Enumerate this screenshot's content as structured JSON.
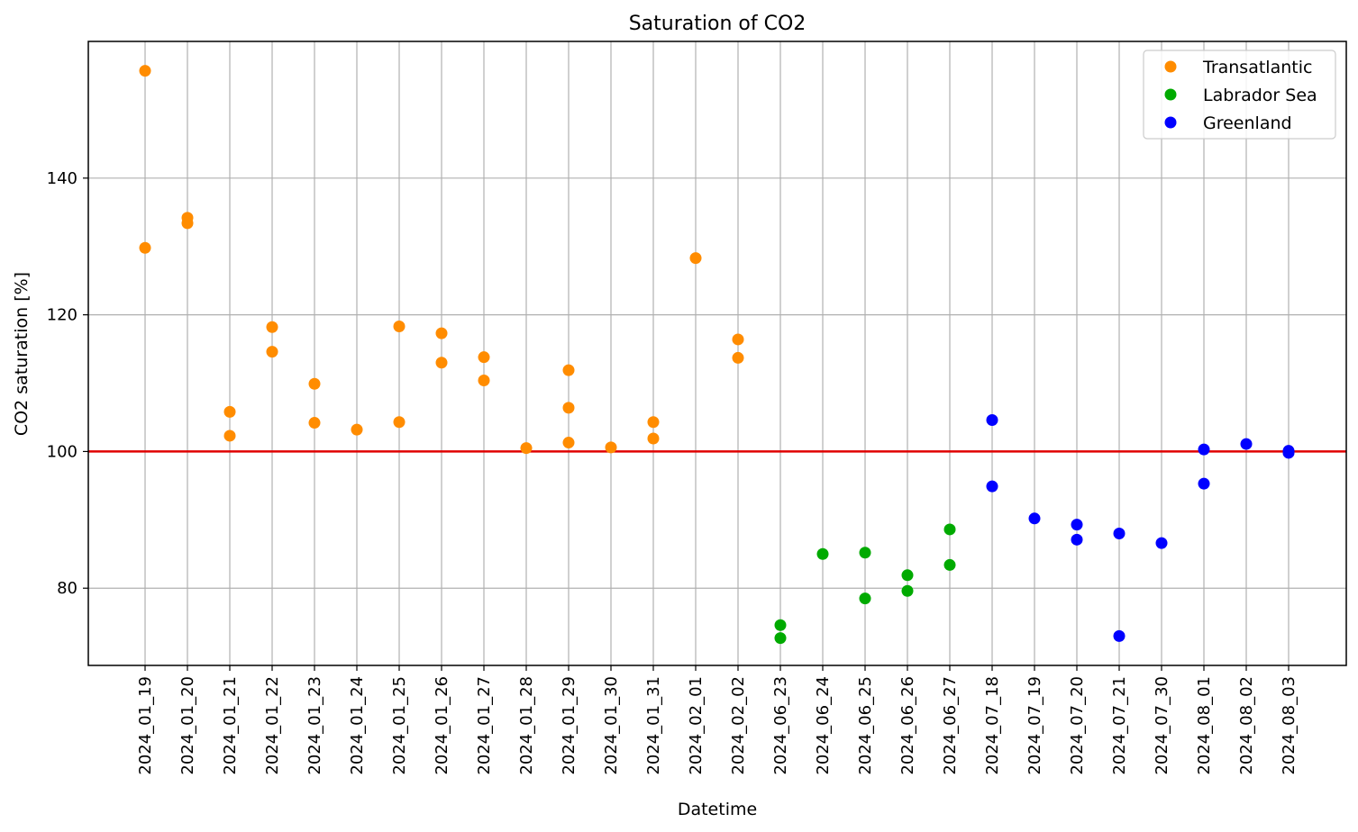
{
  "chart_data": {
    "type": "scatter",
    "title": "Saturation of CO2",
    "xlabel": "Datetime",
    "ylabel": "CO2 saturation [%]",
    "categories": [
      "2024_01_19",
      "2024_01_20",
      "2024_01_21",
      "2024_01_22",
      "2024_01_23",
      "2024_01_24",
      "2024_01_25",
      "2024_01_26",
      "2024_01_27",
      "2024_01_28",
      "2024_01_29",
      "2024_01_30",
      "2024_01_31",
      "2024_02_01",
      "2024_02_02",
      "2024_06_23",
      "2024_06_24",
      "2024_06_25",
      "2024_06_26",
      "2024_06_27",
      "2024_07_18",
      "2024_07_19",
      "2024_07_20",
      "2024_07_21",
      "2024_07_30",
      "2024_08_01",
      "2024_08_02",
      "2024_08_03"
    ],
    "ylim": [
      68.7,
      160
    ],
    "yticks": [
      80,
      100,
      120,
      140
    ],
    "grid": true,
    "legend_position": "top-right",
    "reference_line": {
      "y": 100,
      "color": "#e00000"
    },
    "series": [
      {
        "name": "Transatlantic",
        "color": "#ff8c00",
        "points": [
          [
            "2024_01_19",
            155.7
          ],
          [
            "2024_01_19",
            129.8
          ],
          [
            "2024_01_20",
            134.2
          ],
          [
            "2024_01_20",
            133.4
          ],
          [
            "2024_01_21",
            105.8
          ],
          [
            "2024_01_21",
            102.3
          ],
          [
            "2024_01_22",
            118.2
          ],
          [
            "2024_01_22",
            114.6
          ],
          [
            "2024_01_23",
            109.9
          ],
          [
            "2024_01_23",
            104.2
          ],
          [
            "2024_01_24",
            103.2
          ],
          [
            "2024_01_25",
            118.3
          ],
          [
            "2024_01_25",
            104.3
          ],
          [
            "2024_01_26",
            117.3
          ],
          [
            "2024_01_26",
            113.0
          ],
          [
            "2024_01_27",
            113.8
          ],
          [
            "2024_01_27",
            110.4
          ],
          [
            "2024_01_28",
            100.5
          ],
          [
            "2024_01_29",
            111.9
          ],
          [
            "2024_01_29",
            106.4
          ],
          [
            "2024_01_29",
            101.3
          ],
          [
            "2024_01_30",
            100.6
          ],
          [
            "2024_01_31",
            104.3
          ],
          [
            "2024_01_31",
            101.9
          ],
          [
            "2024_02_01",
            128.3
          ],
          [
            "2024_02_02",
            116.4
          ],
          [
            "2024_02_02",
            113.7
          ]
        ]
      },
      {
        "name": "Labrador Sea",
        "color": "#00aa00",
        "points": [
          [
            "2024_06_23",
            74.6
          ],
          [
            "2024_06_23",
            72.7
          ],
          [
            "2024_06_24",
            85.0
          ],
          [
            "2024_06_25",
            85.2
          ],
          [
            "2024_06_25",
            78.5
          ],
          [
            "2024_06_26",
            81.9
          ],
          [
            "2024_06_26",
            79.6
          ],
          [
            "2024_06_27",
            88.6
          ],
          [
            "2024_06_27",
            83.4
          ]
        ]
      },
      {
        "name": "Greenland",
        "color": "#0000ff",
        "points": [
          [
            "2024_07_18",
            104.6
          ],
          [
            "2024_07_18",
            94.9
          ],
          [
            "2024_07_19",
            90.2
          ],
          [
            "2024_07_20",
            89.3
          ],
          [
            "2024_07_20",
            87.1
          ],
          [
            "2024_07_21",
            88.0
          ],
          [
            "2024_07_21",
            73.0
          ],
          [
            "2024_07_30",
            86.6
          ],
          [
            "2024_08_01",
            100.3
          ],
          [
            "2024_08_01",
            95.3
          ],
          [
            "2024_08_02",
            101.1
          ],
          [
            "2024_08_03",
            100.1
          ],
          [
            "2024_08_03",
            99.8
          ]
        ]
      }
    ]
  }
}
